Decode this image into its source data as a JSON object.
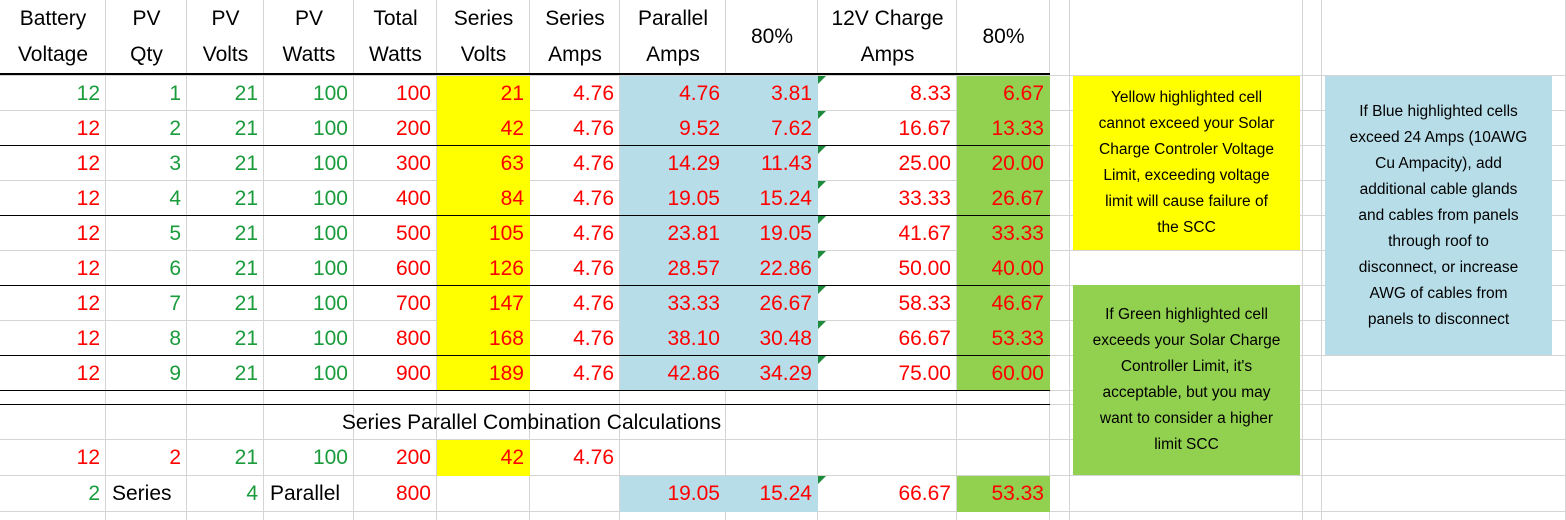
{
  "header": [
    [
      "Battery",
      "Voltage"
    ],
    [
      "PV",
      "Qty"
    ],
    [
      "PV",
      "Volts"
    ],
    [
      "PV",
      "Watts"
    ],
    [
      "Total",
      "Watts"
    ],
    [
      "Series",
      "Volts"
    ],
    [
      "Series",
      "Amps"
    ],
    [
      "Parallel",
      "Amps"
    ],
    [
      "80%"
    ],
    [
      "12V Charge",
      "Amps"
    ],
    [
      "80%"
    ]
  ],
  "rows": [
    [
      "12",
      "1",
      "21",
      "100",
      "100",
      "21",
      "4.76",
      "4.76",
      "3.81",
      "8.33",
      "6.67"
    ],
    [
      "12",
      "2",
      "21",
      "100",
      "200",
      "42",
      "4.76",
      "9.52",
      "7.62",
      "16.67",
      "13.33"
    ],
    [
      "12",
      "3",
      "21",
      "100",
      "300",
      "63",
      "4.76",
      "14.29",
      "11.43",
      "25.00",
      "20.00"
    ],
    [
      "12",
      "4",
      "21",
      "100",
      "400",
      "84",
      "4.76",
      "19.05",
      "15.24",
      "33.33",
      "26.67"
    ],
    [
      "12",
      "5",
      "21",
      "100",
      "500",
      "105",
      "4.76",
      "23.81",
      "19.05",
      "41.67",
      "33.33"
    ],
    [
      "12",
      "6",
      "21",
      "100",
      "600",
      "126",
      "4.76",
      "28.57",
      "22.86",
      "50.00",
      "40.00"
    ],
    [
      "12",
      "7",
      "21",
      "100",
      "700",
      "147",
      "4.76",
      "33.33",
      "26.67",
      "58.33",
      "46.67"
    ],
    [
      "12",
      "8",
      "21",
      "100",
      "800",
      "168",
      "4.76",
      "38.10",
      "30.48",
      "66.67",
      "53.33"
    ],
    [
      "12",
      "9",
      "21",
      "100",
      "900",
      "189",
      "4.76",
      "42.86",
      "34.29",
      "75.00",
      "60.00"
    ]
  ],
  "combination_title": "Series Parallel Combination Calculations",
  "combination_rows": [
    [
      "12",
      "2",
      "21",
      "100",
      "200",
      "42",
      "4.76",
      null,
      null,
      null,
      null
    ],
    [
      "2",
      "Series",
      "4",
      "Parallel",
      "800",
      null,
      null,
      "19.05",
      "15.24",
      "66.67",
      "53.33"
    ]
  ],
  "notes": {
    "yellow": [
      "Yellow highlighted cell",
      "cannot exceed your Solar",
      "Charge Controler Voltage",
      "Limit, exceeding voltage",
      "limit will cause failure of",
      "the SCC"
    ],
    "green": [
      "If Green highlighted cell",
      "exceeds your Solar Charge",
      "Controller Limit, it's",
      "acceptable, but you may",
      "want to consider a higher",
      "limit SCC"
    ],
    "blue": [
      "If Blue highlighted cells",
      "exceed 24 Amps (10AWG",
      "Cu Ampacity), add",
      "additional cable glands",
      "and cables from panels",
      "through roof to",
      "disconnect, or increase",
      "AWG of cables from",
      "panels to disconnect"
    ]
  }
}
